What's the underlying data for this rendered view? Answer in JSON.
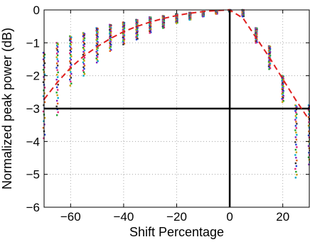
{
  "chart_data": {
    "type": "scatter",
    "title": "",
    "xlabel": "Shift Percentage",
    "ylabel": "Normalized peak power (dB)",
    "xlim": [
      -70,
      30
    ],
    "ylim": [
      -6,
      0
    ],
    "xticks": [
      -60,
      -40,
      -20,
      0,
      20
    ],
    "yticks": [
      0,
      -1,
      -2,
      -3,
      -4,
      -5,
      -6
    ],
    "grid": true,
    "legend": "none",
    "reference_lines": {
      "horizontal_y": -3,
      "vertical_x": 0
    },
    "series": [
      {
        "kind": "measured_clusters",
        "x": [
          -70,
          -65,
          -60,
          -55,
          -50,
          -45,
          -40,
          -35,
          -30,
          -25,
          -20,
          -15,
          -10,
          -5,
          0,
          5,
          10,
          15,
          20,
          25,
          30
        ],
        "y_min": [
          -3.9,
          -3.2,
          -2.3,
          -2.0,
          -1.6,
          -1.25,
          -1.05,
          -0.9,
          -0.7,
          -0.55,
          -0.4,
          -0.3,
          -0.2,
          -0.12,
          -0.05,
          -0.2,
          -1.0,
          -1.8,
          -2.8,
          -5.1,
          -4.7
        ],
        "y_max": [
          -1.3,
          -1.0,
          -0.8,
          -0.7,
          -0.55,
          -0.45,
          -0.38,
          -0.3,
          -0.22,
          -0.18,
          -0.12,
          -0.08,
          -0.05,
          -0.03,
          0.0,
          0.0,
          -0.55,
          -1.1,
          -2.0,
          -2.9,
          -2.9
        ]
      },
      {
        "kind": "fit_curve",
        "style": "dashed",
        "x": [
          -70,
          -65,
          -60,
          -55,
          -50,
          -45,
          -40,
          -35,
          -30,
          -25,
          -20,
          -15,
          -10,
          -5,
          0,
          5,
          10,
          15,
          20,
          25,
          30
        ],
        "y": [
          -2.72,
          -2.2,
          -1.76,
          -1.4,
          -1.12,
          -0.87,
          -0.66,
          -0.5,
          -0.37,
          -0.26,
          -0.17,
          -0.1,
          -0.05,
          -0.02,
          0.0,
          -0.25,
          -0.85,
          -1.45,
          -2.1,
          -2.75,
          -3.35
        ]
      }
    ],
    "colors": {
      "fit": "#e02020",
      "reference": "#000000",
      "grid": "#9a9a9a",
      "clusters": [
        "#1f3fd8",
        "#e0207a",
        "#20a030",
        "#c8a000",
        "#00a8c8",
        "#8020c0",
        "#e06010",
        "#303030"
      ]
    }
  }
}
